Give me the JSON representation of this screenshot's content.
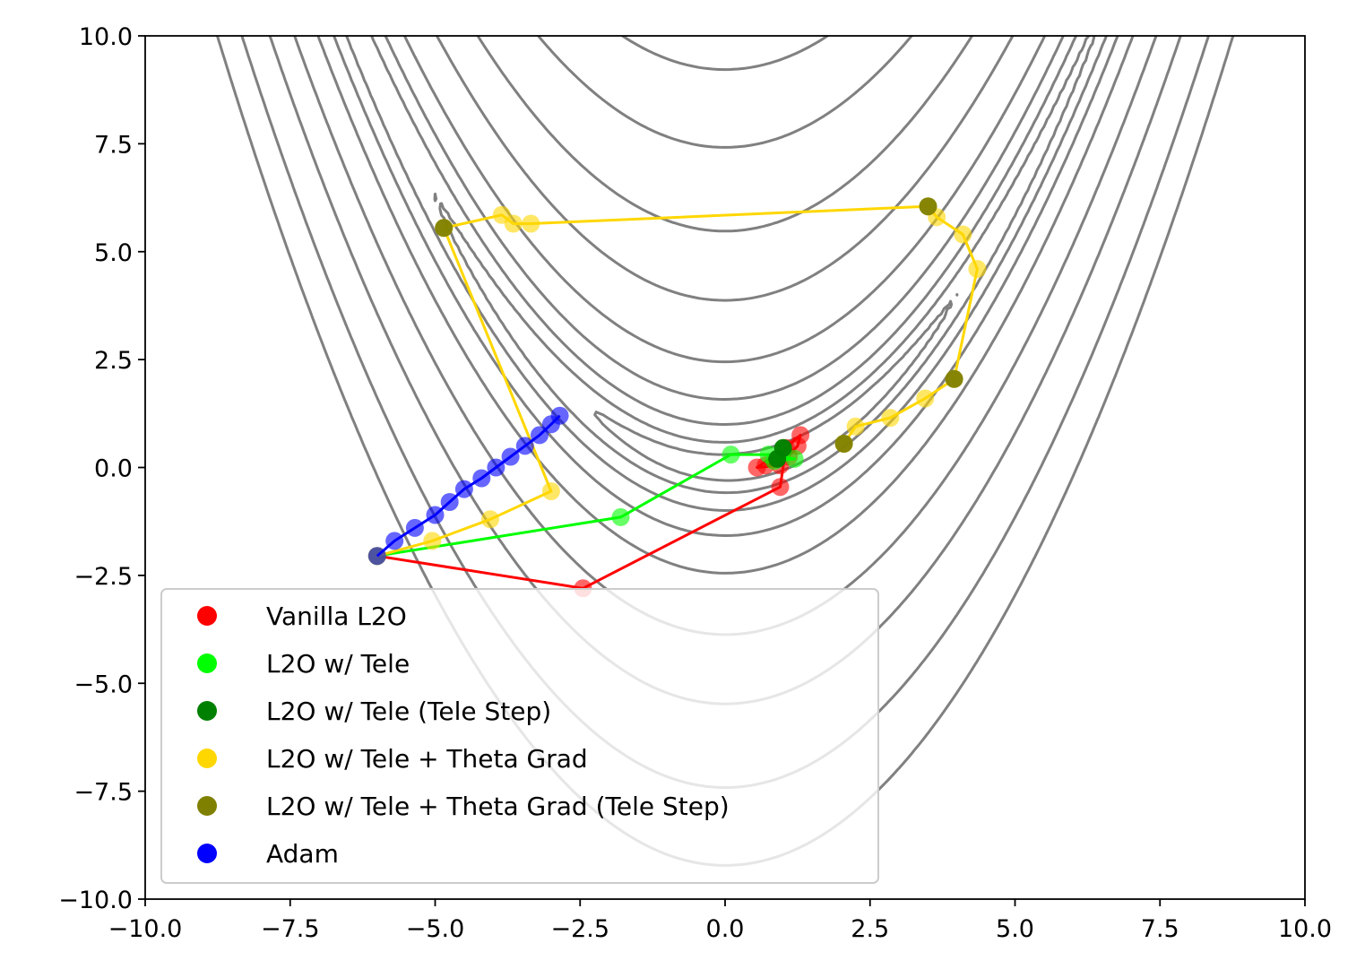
{
  "chart_data": {
    "type": "scatter",
    "title": "",
    "xlabel": "",
    "ylabel": "",
    "xlim": [
      -10,
      10
    ],
    "ylim": [
      -10,
      10
    ],
    "grid": false,
    "legend_position": "lower-left",
    "x_ticks": [
      -10,
      -7.5,
      -5,
      -2.5,
      0,
      2.5,
      5,
      7.5,
      10
    ],
    "y_ticks": [
      -10,
      -7.5,
      -5,
      -2.5,
      0,
      2.5,
      5,
      7.5,
      10
    ],
    "x_tick_labels": [
      "−10.0",
      "−7.5",
      "−5.0",
      "−2.5",
      "0.0",
      "2.5",
      "5.0",
      "7.5",
      "10.0"
    ],
    "y_tick_labels": [
      "−10.0",
      "−7.5",
      "−5.0",
      "−2.5",
      "0.0",
      "2.5",
      "5.0",
      "7.5",
      "10.0"
    ],
    "contour_color": "#808080",
    "series": [
      {
        "name": "Vanilla L2O",
        "color": "#ff0000",
        "points": [
          [
            -6.0,
            -2.05
          ],
          [
            -2.45,
            -2.8
          ],
          [
            0.95,
            -0.45
          ],
          [
            1.05,
            0.45
          ],
          [
            0.55,
            0.0
          ],
          [
            0.95,
            0.05
          ],
          [
            1.25,
            0.5
          ],
          [
            1.3,
            0.75
          ],
          [
            0.7,
            0.05
          ],
          [
            1.1,
            0.25
          ]
        ]
      },
      {
        "name": "L2O w/ Tele",
        "color": "#00ff00",
        "points": [
          [
            -6.0,
            -2.05
          ],
          [
            -1.8,
            -1.15
          ],
          [
            0.1,
            0.3
          ],
          [
            0.75,
            0.3
          ],
          [
            1.2,
            0.2
          ],
          [
            0.85,
            0.15
          ],
          [
            1.0,
            0.4
          ]
        ]
      },
      {
        "name": "L2O w/ Tele (Tele Step)",
        "color": "#008000",
        "points": [
          [
            0.9,
            0.2
          ],
          [
            1.0,
            0.45
          ]
        ]
      },
      {
        "name": "L2O w/ Tele + Theta Grad",
        "color": "#ffd700",
        "points": [
          [
            -6.0,
            -2.05
          ],
          [
            -5.05,
            -1.7
          ],
          [
            -4.05,
            -1.2
          ],
          [
            -3.0,
            -0.55
          ],
          [
            -4.85,
            5.55
          ],
          [
            -3.85,
            5.85
          ],
          [
            -3.65,
            5.65
          ],
          [
            -3.35,
            5.65
          ],
          [
            3.5,
            6.05
          ],
          [
            3.65,
            5.8
          ],
          [
            4.1,
            5.4
          ],
          [
            4.35,
            4.6
          ],
          [
            3.95,
            2.05
          ],
          [
            3.45,
            1.6
          ],
          [
            2.85,
            1.15
          ],
          [
            2.25,
            0.95
          ],
          [
            2.05,
            0.55
          ]
        ]
      },
      {
        "name": "L2O w/ Tele + Theta Grad (Tele Step)",
        "color": "#808000",
        "points": [
          [
            -4.85,
            5.55
          ],
          [
            3.5,
            6.05
          ],
          [
            3.95,
            2.05
          ],
          [
            2.05,
            0.55
          ]
        ]
      },
      {
        "name": "Adam",
        "color": "#0000ff",
        "points": [
          [
            -6.0,
            -2.05
          ],
          [
            -5.7,
            -1.7
          ],
          [
            -5.35,
            -1.4
          ],
          [
            -5.0,
            -1.1
          ],
          [
            -4.75,
            -0.8
          ],
          [
            -4.5,
            -0.5
          ],
          [
            -4.2,
            -0.25
          ],
          [
            -3.95,
            0.0
          ],
          [
            -3.7,
            0.25
          ],
          [
            -3.45,
            0.5
          ],
          [
            -3.2,
            0.75
          ],
          [
            -3.0,
            1.0
          ],
          [
            -2.85,
            1.2
          ]
        ]
      }
    ]
  }
}
